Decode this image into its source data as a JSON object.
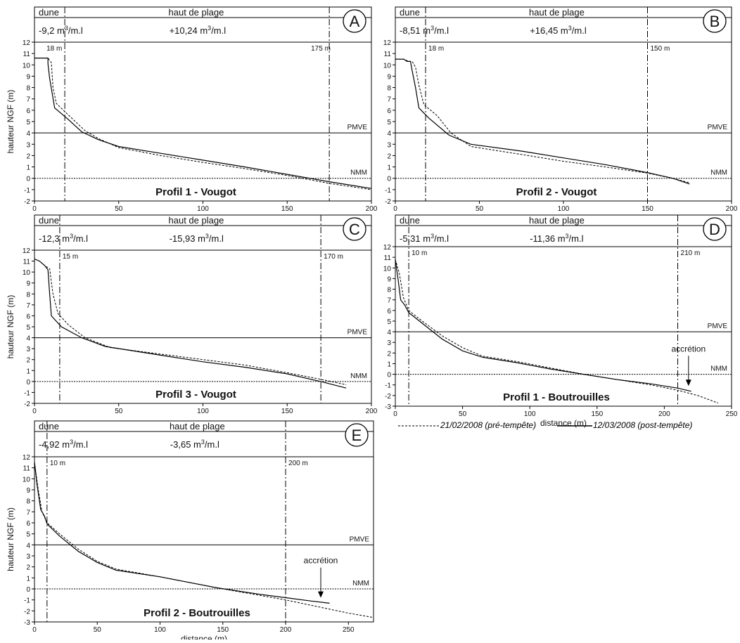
{
  "chart_data": [
    {
      "type": "line",
      "panel_letter": "A",
      "header": {
        "zone_left": "dune",
        "zone_right": "haut de plage",
        "vol_left": "-9,2 m³/m.l",
        "vol_right": "+10,24 m³/m.l"
      },
      "title": "Profil 1 - Vougot",
      "ylabel": "hauteur NGF (m)",
      "xlabel": "",
      "xlim": [
        0,
        200
      ],
      "ylim": [
        -2,
        12
      ],
      "xticks": [
        0,
        50,
        100,
        150,
        200
      ],
      "yticks": [
        -2,
        -1,
        0,
        1,
        2,
        3,
        4,
        5,
        6,
        7,
        8,
        9,
        10,
        11,
        12
      ],
      "reference_lines": [
        {
          "label": "PMVE",
          "y": 4
        },
        {
          "label": "NMM",
          "y": 0
        }
      ],
      "vertical_markers": [
        {
          "x": 18,
          "label": "18 m"
        },
        {
          "x": 175,
          "label": "175 m"
        }
      ],
      "series": [
        {
          "name": "21/02/2008 (pré-tempête)",
          "style": "dashed",
          "points": [
            [
              0,
              10.6
            ],
            [
              8,
              10.6
            ],
            [
              10,
              10.2
            ],
            [
              11,
              8
            ],
            [
              13,
              6.6
            ],
            [
              20,
              5.6
            ],
            [
              30,
              4.2
            ],
            [
              38,
              3.5
            ],
            [
              50,
              2.7
            ],
            [
              75,
              2.0
            ],
            [
              100,
              1.4
            ],
            [
              125,
              0.85
            ],
            [
              150,
              0.25
            ],
            [
              175,
              -0.45
            ],
            [
              200,
              -1.0
            ]
          ]
        },
        {
          "name": "12/03/2008 (post-tempête)",
          "style": "solid",
          "points": [
            [
              0,
              10.6
            ],
            [
              8,
              10.6
            ],
            [
              8,
              10.1
            ],
            [
              9,
              8.8
            ],
            [
              12,
              6.2
            ],
            [
              20,
              5.2
            ],
            [
              28,
              4.1
            ],
            [
              38,
              3.4
            ],
            [
              50,
              2.8
            ],
            [
              75,
              2.2
            ],
            [
              100,
              1.6
            ],
            [
              125,
              1.0
            ],
            [
              150,
              0.35
            ],
            [
              175,
              -0.3
            ],
            [
              200,
              -0.9
            ]
          ]
        }
      ]
    },
    {
      "type": "line",
      "panel_letter": "B",
      "header": {
        "zone_left": "dune",
        "zone_right": "haut de plage",
        "vol_left": "-8,51 m³/m.l",
        "vol_right": "+16,45 m³/m.l"
      },
      "title": "Profil 2 - Vougot",
      "ylabel": "",
      "xlabel": "",
      "xlim": [
        0,
        200
      ],
      "ylim": [
        -2,
        12
      ],
      "xticks": [
        0,
        50,
        100,
        150,
        200
      ],
      "yticks": [
        -2,
        -1,
        0,
        1,
        2,
        3,
        4,
        5,
        6,
        7,
        8,
        9,
        10,
        11,
        12
      ],
      "reference_lines": [
        {
          "label": "PMVE",
          "y": 4
        },
        {
          "label": "NMM",
          "y": 0
        }
      ],
      "vertical_markers": [
        {
          "x": 18,
          "label": "18 m"
        },
        {
          "x": 150,
          "label": "150 m"
        }
      ],
      "series": [
        {
          "name": "21/02/2008 (pré-tempête)",
          "style": "dashed",
          "points": [
            [
              0,
              10.5
            ],
            [
              5,
              10.5
            ],
            [
              8,
              10.3
            ],
            [
              10,
              10.3
            ],
            [
              12,
              9.8
            ],
            [
              14,
              8.2
            ],
            [
              17,
              6.5
            ],
            [
              25,
              5.5
            ],
            [
              33,
              4.0
            ],
            [
              45,
              2.8
            ],
            [
              75,
              2.1
            ],
            [
              100,
              1.5
            ],
            [
              125,
              1.0
            ],
            [
              150,
              0.45
            ],
            [
              165,
              0.0
            ],
            [
              175,
              -0.4
            ]
          ]
        },
        {
          "name": "12/03/2008 (post-tempête)",
          "style": "solid",
          "points": [
            [
              0,
              10.5
            ],
            [
              5,
              10.5
            ],
            [
              7,
              10.3
            ],
            [
              9,
              10.3
            ],
            [
              10,
              9.5
            ],
            [
              12,
              8.0
            ],
            [
              14,
              6.2
            ],
            [
              20,
              5.3
            ],
            [
              32,
              3.8
            ],
            [
              45,
              3.0
            ],
            [
              75,
              2.4
            ],
            [
              100,
              1.8
            ],
            [
              125,
              1.2
            ],
            [
              150,
              0.5
            ],
            [
              165,
              0.0
            ],
            [
              175,
              -0.5
            ]
          ]
        }
      ]
    },
    {
      "type": "line",
      "panel_letter": "C",
      "header": {
        "zone_left": "dune",
        "zone_right": "haut de plage",
        "vol_left": "-12,3 m³/m.l",
        "vol_right": "-15,93 m³/m.l"
      },
      "title": "Profil 3 - Vougot",
      "ylabel": "hauteur NGF (m)",
      "xlabel": "",
      "xlim": [
        0,
        200
      ],
      "ylim": [
        -2,
        12
      ],
      "xticks": [
        0,
        50,
        100,
        150,
        200
      ],
      "yticks": [
        -2,
        -1,
        0,
        1,
        2,
        3,
        4,
        5,
        6,
        7,
        8,
        9,
        10,
        11,
        12
      ],
      "reference_lines": [
        {
          "label": "PMVE",
          "y": 4
        },
        {
          "label": "NMM",
          "y": 0
        }
      ],
      "vertical_markers": [
        {
          "x": 15,
          "label": "15 m"
        },
        {
          "x": 170,
          "label": "170 m"
        }
      ],
      "series": [
        {
          "name": "21/02/2008 (pré-tempête)",
          "style": "dashed",
          "points": [
            [
              0,
              11.2
            ],
            [
              3,
              11.0
            ],
            [
              6,
              10.6
            ],
            [
              9,
              10.3
            ],
            [
              11,
              8.0
            ],
            [
              14,
              6.2
            ],
            [
              20,
              5.2
            ],
            [
              30,
              4.0
            ],
            [
              45,
              3.1
            ],
            [
              75,
              2.5
            ],
            [
              100,
              2.0
            ],
            [
              125,
              1.5
            ],
            [
              150,
              0.8
            ],
            [
              170,
              0.2
            ],
            [
              185,
              -0.3
            ]
          ]
        },
        {
          "name": "12/03/2008 (post-tempête)",
          "style": "solid",
          "points": [
            [
              0,
              11.2
            ],
            [
              3,
              11.0
            ],
            [
              6,
              10.6
            ],
            [
              8,
              10.2
            ],
            [
              9,
              8.0
            ],
            [
              10,
              6.0
            ],
            [
              16,
              5.0
            ],
            [
              28,
              4.0
            ],
            [
              42,
              3.2
            ],
            [
              75,
              2.4
            ],
            [
              100,
              1.8
            ],
            [
              125,
              1.3
            ],
            [
              150,
              0.7
            ],
            [
              170,
              0.0
            ],
            [
              185,
              -0.6
            ]
          ]
        }
      ]
    },
    {
      "type": "line",
      "panel_letter": "D",
      "header": {
        "zone_left": "dune",
        "zone_right": "haut de plage",
        "vol_left": "-5,31 m³/m.l",
        "vol_right": "-11,36 m³/m.l"
      },
      "title": "Profil 1 - Boutrouilles",
      "ylabel": "",
      "xlabel": "distance (m)",
      "xlim": [
        0,
        250
      ],
      "ylim": [
        -3,
        12
      ],
      "xticks": [
        0,
        50,
        100,
        150,
        200,
        250
      ],
      "yticks": [
        -3,
        -2,
        -1,
        0,
        1,
        2,
        3,
        4,
        5,
        6,
        7,
        8,
        9,
        10,
        11,
        12
      ],
      "reference_lines": [
        {
          "label": "PMVE",
          "y": 4
        },
        {
          "label": "NMM",
          "y": 0
        }
      ],
      "vertical_markers": [
        {
          "x": 10,
          "label": "10 m"
        },
        {
          "x": 210,
          "label": "210 m"
        }
      ],
      "annotation": {
        "text": "accrétion",
        "x": 218,
        "y": -1.3
      },
      "series": [
        {
          "name": "21/02/2008 (pré-tempête)",
          "style": "dashed",
          "points": [
            [
              0,
              10.8
            ],
            [
              3,
              9.5
            ],
            [
              6,
              7.2
            ],
            [
              10,
              6.0
            ],
            [
              20,
              5.0
            ],
            [
              35,
              3.6
            ],
            [
              50,
              2.5
            ],
            [
              65,
              1.7
            ],
            [
              90,
              1.2
            ],
            [
              115,
              0.6
            ],
            [
              140,
              0.0
            ],
            [
              165,
              -0.5
            ],
            [
              190,
              -1.0
            ],
            [
              210,
              -1.5
            ],
            [
              225,
              -2.0
            ],
            [
              240,
              -2.7
            ]
          ]
        },
        {
          "name": "12/03/2008 (post-tempête)",
          "style": "solid",
          "points": [
            [
              0,
              10.8
            ],
            [
              2,
              9.0
            ],
            [
              4,
              7.0
            ],
            [
              7,
              6.5
            ],
            [
              10,
              5.8
            ],
            [
              20,
              4.8
            ],
            [
              35,
              3.3
            ],
            [
              50,
              2.2
            ],
            [
              65,
              1.6
            ],
            [
              90,
              1.1
            ],
            [
              115,
              0.5
            ],
            [
              140,
              0.0
            ],
            [
              165,
              -0.5
            ],
            [
              190,
              -0.9
            ],
            [
              210,
              -1.3
            ],
            [
              220,
              -1.6
            ]
          ]
        }
      ]
    },
    {
      "type": "line",
      "panel_letter": "E",
      "header": {
        "zone_left": "dune",
        "zone_right": "haut de plage",
        "vol_left": "-4,92 m³/m.l",
        "vol_right": "-3,65 m³/m.l"
      },
      "title": "Profil 2 - Boutrouilles",
      "ylabel": "hauteur NGF (m)",
      "xlabel": "distance (m)",
      "xlim": [
        0,
        270
      ],
      "ylim": [
        -3,
        12
      ],
      "xticks": [
        0,
        50,
        100,
        150,
        200,
        250
      ],
      "yticks": [
        -3,
        -2,
        -1,
        0,
        1,
        2,
        3,
        4,
        5,
        6,
        7,
        8,
        9,
        10,
        11,
        12
      ],
      "reference_lines": [
        {
          "label": "PMVE",
          "y": 4
        },
        {
          "label": "NMM",
          "y": 0
        }
      ],
      "vertical_markers": [
        {
          "x": 10,
          "label": "10 m"
        },
        {
          "x": 200,
          "label": "200 m"
        }
      ],
      "annotation": {
        "text": "accrétion",
        "x": 228,
        "y": -1.0
      },
      "series": [
        {
          "name": "21/02/2008 (pré-tempête)",
          "style": "dashed",
          "points": [
            [
              0,
              11.5
            ],
            [
              3,
              9.0
            ],
            [
              6,
              7.0
            ],
            [
              10,
              6.0
            ],
            [
              20,
              5.0
            ],
            [
              35,
              3.6
            ],
            [
              50,
              2.5
            ],
            [
              65,
              1.8
            ],
            [
              100,
              1.1
            ],
            [
              145,
              0.1
            ],
            [
              180,
              -0.6
            ],
            [
              200,
              -1.0
            ],
            [
              225,
              -1.6
            ],
            [
              250,
              -2.2
            ],
            [
              270,
              -2.6
            ]
          ]
        },
        {
          "name": "12/03/2008 (post-tempête)",
          "style": "solid",
          "points": [
            [
              0,
              11.5
            ],
            [
              2,
              9.5
            ],
            [
              5,
              7.2
            ],
            [
              8,
              6.6
            ],
            [
              10,
              5.9
            ],
            [
              20,
              4.8
            ],
            [
              35,
              3.4
            ],
            [
              50,
              2.4
            ],
            [
              65,
              1.7
            ],
            [
              100,
              1.1
            ],
            [
              145,
              0.1
            ],
            [
              180,
              -0.5
            ],
            [
              200,
              -0.8
            ],
            [
              220,
              -1.1
            ],
            [
              235,
              -1.3
            ]
          ]
        }
      ]
    }
  ],
  "legend": {
    "pre_label": "21/02/2008 (pré-tempête)",
    "post_label": "12/03/2008 (post-tempête)"
  }
}
